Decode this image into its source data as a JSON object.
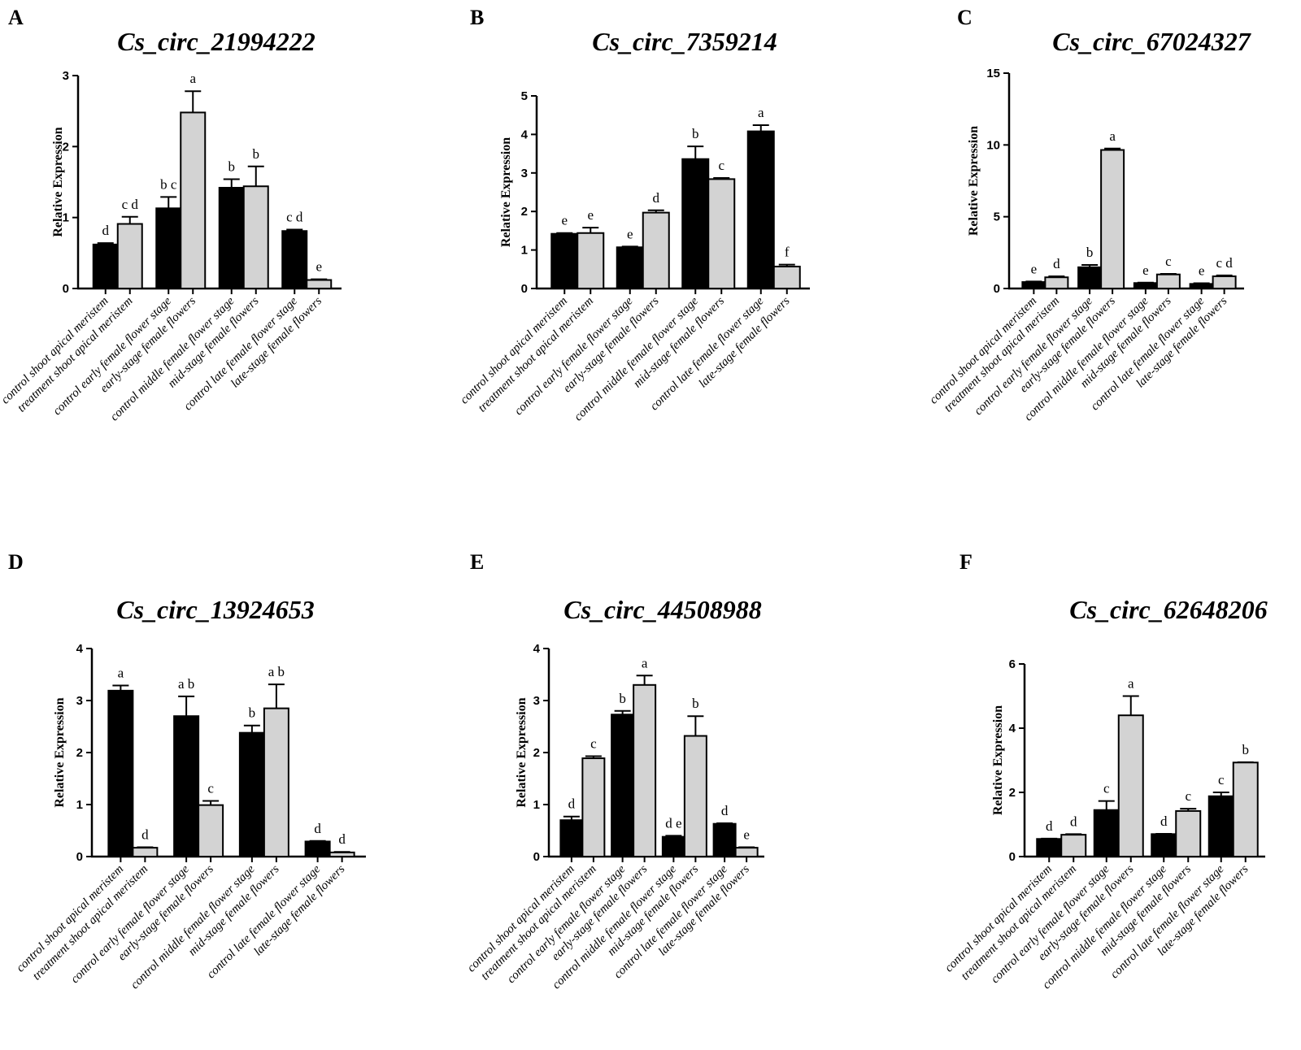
{
  "colors": {
    "control": "#000000",
    "treatment": "#d3d3d3"
  },
  "chart_data": [
    {
      "type": "bar",
      "panel": "A",
      "title": "Cs_circ_21994222",
      "ylabel": "Relative Expression",
      "ylim": [
        0,
        3
      ],
      "yticks": [
        0,
        1,
        2,
        3
      ],
      "categories": [
        "control shoot apical meristem",
        "treatment shoot apical meristem",
        "control early female flower stage",
        "early-stage female flowers",
        "control middle female flower stage",
        "mid-stage female flowers",
        "control late female flower stage",
        "late-stage female flowers"
      ],
      "values": [
        0.62,
        0.91,
        1.13,
        2.48,
        1.42,
        1.44,
        0.81,
        0.12
      ],
      "errors": [
        0.02,
        0.1,
        0.16,
        0.3,
        0.12,
        0.28,
        0.02,
        0.01
      ],
      "labels": [
        "d",
        "c d",
        "b c",
        "a",
        "b",
        "b",
        "c d",
        "e"
      ],
      "colors": [
        "control",
        "treatment",
        "control",
        "treatment",
        "control",
        "treatment",
        "control",
        "treatment"
      ]
    },
    {
      "type": "bar",
      "panel": "B",
      "title": "Cs_circ_7359214",
      "ylabel": "Relative Expression",
      "ylim": [
        0,
        5
      ],
      "yticks": [
        0,
        1,
        2,
        3,
        4,
        5
      ],
      "categories": [
        "control shoot apical meristem",
        "treatment shoot apical meristem",
        "control early female flower stage",
        "early-stage female flowers",
        "control middle female flower stage",
        "mid-stage female flowers",
        "control late female flower stage",
        "late-stage female flowers"
      ],
      "values": [
        1.42,
        1.44,
        1.07,
        1.97,
        3.36,
        2.84,
        4.08,
        0.57
      ],
      "errors": [
        0.02,
        0.14,
        0.02,
        0.06,
        0.33,
        0.03,
        0.16,
        0.05
      ],
      "labels": [
        "e",
        "e",
        "e",
        "d",
        "b",
        "c",
        "a",
        "f"
      ],
      "colors": [
        "control",
        "treatment",
        "control",
        "treatment",
        "control",
        "treatment",
        "control",
        "treatment"
      ]
    },
    {
      "type": "bar",
      "panel": "C",
      "title": "Cs_circ_67024327",
      "ylabel": "Relative Expression",
      "ylim": [
        0,
        15
      ],
      "yticks": [
        0,
        5,
        10,
        15
      ],
      "categories": [
        "control shoot apical meristem",
        "treatment shoot apical meristem",
        "control early female flower stage",
        "early-stage female flowers",
        "control middle female flower stage",
        "mid-stage female flowers",
        "control late female flower stage",
        "late-stage female flowers"
      ],
      "values": [
        0.45,
        0.78,
        1.48,
        9.65,
        0.38,
        0.98,
        0.32,
        0.85
      ],
      "errors": [
        0.04,
        0.07,
        0.16,
        0.1,
        0.03,
        0.04,
        0.05,
        0.06
      ],
      "labels": [
        "e",
        "d",
        "b",
        "a",
        "e",
        "c",
        "e",
        "c d"
      ],
      "colors": [
        "control",
        "treatment",
        "control",
        "treatment",
        "control",
        "treatment",
        "control",
        "treatment"
      ]
    },
    {
      "type": "bar",
      "panel": "D",
      "title": "Cs_circ_13924653",
      "ylabel": "Relative Expression",
      "ylim": [
        0,
        4
      ],
      "yticks": [
        0,
        1,
        2,
        3,
        4
      ],
      "categories": [
        "control shoot apical meristem",
        "treatment shoot apical meristem",
        "control early female flower stage",
        "early-stage female flowers",
        "control middle female flower stage",
        "mid-stage female flowers",
        "control late female flower stage",
        "late-stage female flowers"
      ],
      "values": [
        3.19,
        0.17,
        2.7,
        0.99,
        2.38,
        2.85,
        0.29,
        0.08
      ],
      "errors": [
        0.1,
        0.01,
        0.38,
        0.08,
        0.14,
        0.46,
        0.01,
        0.01
      ],
      "labels": [
        "a",
        "d",
        "a b",
        "c",
        "b",
        "a b",
        "d",
        "d"
      ],
      "colors": [
        "control",
        "treatment",
        "control",
        "treatment",
        "control",
        "treatment",
        "control",
        "treatment"
      ]
    },
    {
      "type": "bar",
      "panel": "E",
      "title": "Cs_circ_44508988",
      "ylabel": "Relative Expression",
      "ylim": [
        0,
        4
      ],
      "yticks": [
        0,
        1,
        2,
        3,
        4
      ],
      "categories": [
        "control shoot apical meristem",
        "treatment shoot apical meristem",
        "control early female flower stage",
        "early-stage female flowers",
        "control middle female flower stage",
        "mid-stage female flowers",
        "control late female flower stage",
        "late-stage female flowers"
      ],
      "values": [
        0.7,
        1.89,
        2.73,
        3.3,
        0.38,
        2.32,
        0.63,
        0.17
      ],
      "errors": [
        0.07,
        0.04,
        0.07,
        0.18,
        0.02,
        0.38,
        0.01,
        0.01
      ],
      "labels": [
        "d",
        "c",
        "b",
        "a",
        "d e",
        "b",
        "d",
        "e"
      ],
      "colors": [
        "control",
        "treatment",
        "control",
        "treatment",
        "control",
        "treatment",
        "control",
        "treatment"
      ]
    },
    {
      "type": "bar",
      "panel": "F",
      "title": "Cs_circ_62648206",
      "ylabel": "Relative Expression",
      "ylim": [
        0,
        6
      ],
      "yticks": [
        0,
        2,
        4,
        6
      ],
      "categories": [
        "control shoot apical meristem",
        "treatment shoot apical meristem",
        "control early female flower stage",
        "early-stage female flowers",
        "control middle female flower stage",
        "mid-stage female flowers",
        "control late female flower stage",
        "late-stage female flowers"
      ],
      "values": [
        0.55,
        0.68,
        1.45,
        4.4,
        0.7,
        1.42,
        1.88,
        2.93
      ],
      "errors": [
        0.01,
        0.02,
        0.28,
        0.6,
        0.01,
        0.07,
        0.12,
        0.01
      ],
      "labels": [
        "d",
        "d",
        "c",
        "a",
        "d",
        "c",
        "c",
        "b"
      ],
      "colors": [
        "control",
        "treatment",
        "control",
        "treatment",
        "control",
        "treatment",
        "control",
        "treatment"
      ]
    }
  ]
}
